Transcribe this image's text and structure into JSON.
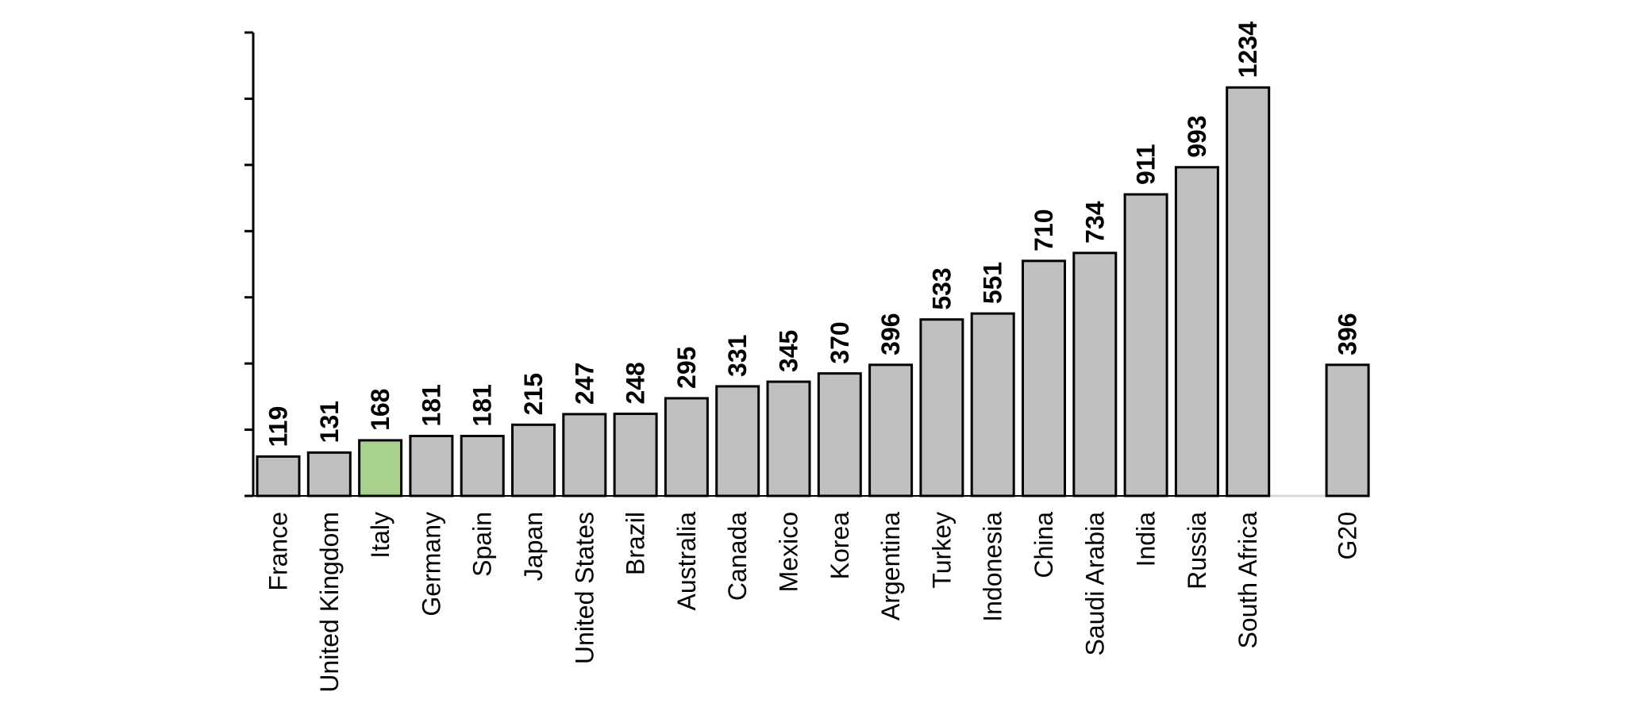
{
  "chart_data": {
    "type": "bar",
    "title": "",
    "xlabel": "",
    "ylabel": "",
    "ylim": [
      0,
      1400
    ],
    "grid": false,
    "y_tick_labels_shown": false,
    "highlight_category": "Italy",
    "colors": {
      "bar": "#c0c0c0",
      "highlight": "#a9d18e",
      "outline": "#000000",
      "baseline_gap": "#d9d9d9"
    },
    "categories": [
      "France",
      "United Kingdom",
      "Italy",
      "Germany",
      "Spain",
      "Japan",
      "United States",
      "Brazil",
      "Australia",
      "Canada",
      "Mexico",
      "Korea",
      "Argentina",
      "Turkey",
      "Indonesia",
      "China",
      "Saudi Arabia",
      "India",
      "Russia",
      "South Africa",
      "G20"
    ],
    "values": [
      119,
      131,
      168,
      181,
      181,
      215,
      247,
      248,
      295,
      331,
      345,
      370,
      396,
      533,
      551,
      710,
      734,
      911,
      993,
      1234,
      396
    ],
    "value_labels": [
      "119",
      "131",
      "168",
      "181",
      "181",
      "215",
      "247",
      "248",
      "295",
      "331",
      "345",
      "370",
      "396",
      "533",
      "551",
      "710",
      "734",
      "911",
      "993",
      "1234",
      "396"
    ]
  }
}
